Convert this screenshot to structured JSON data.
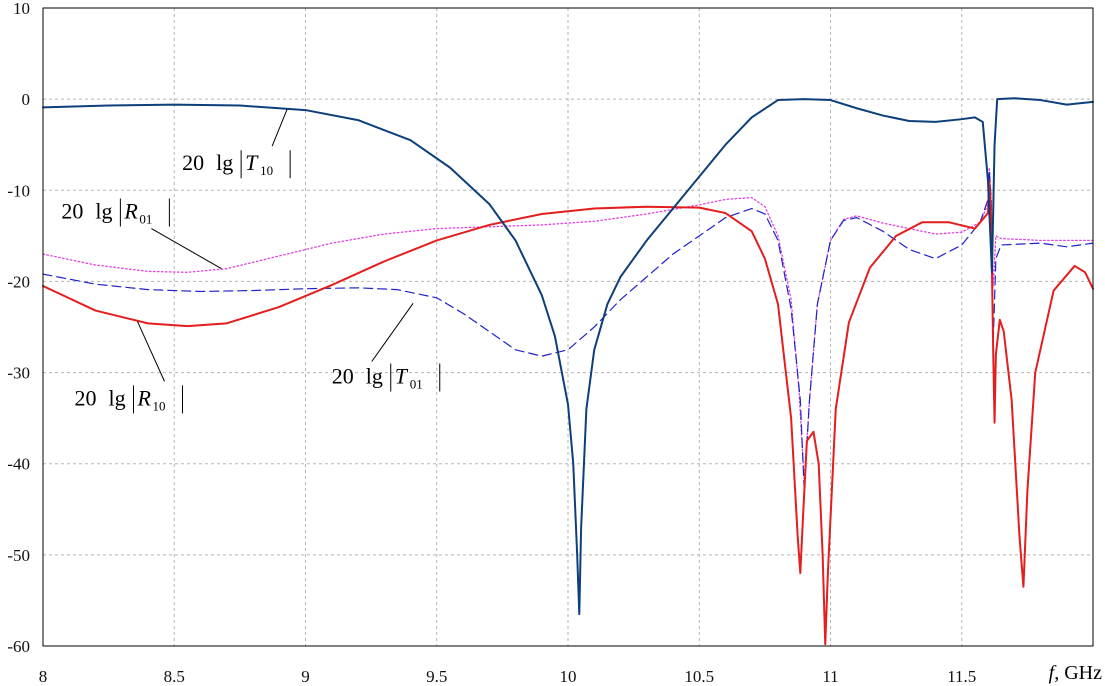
{
  "chart_data": {
    "type": "line",
    "title": "",
    "xlabel": "GHz",
    "xlabel_symbol": "f",
    "ylabel": "",
    "xlim": [
      8,
      12
    ],
    "ylim": [
      -60,
      10
    ],
    "x_ticks": [
      8,
      8.5,
      9,
      9.5,
      10,
      10.5,
      11,
      11.5
    ],
    "x_tick_labels": [
      "8",
      "8.5",
      "9",
      "9.5",
      "10",
      "10.5",
      "11",
      "11.5"
    ],
    "y_ticks": [
      10,
      0,
      -10,
      -20,
      -30,
      -40,
      -50,
      -60
    ],
    "y_tick_labels": [
      "10",
      "0",
      "-10",
      "-20",
      "-30",
      "-40",
      "-50",
      "-60"
    ],
    "grid": true,
    "series": [
      {
        "name": "20 lg|T10|",
        "color": "#0d3f7a",
        "style": "solid",
        "points": [
          [
            8.0,
            -0.9
          ],
          [
            8.25,
            -0.7
          ],
          [
            8.5,
            -0.6
          ],
          [
            8.75,
            -0.7
          ],
          [
            9.0,
            -1.2
          ],
          [
            9.2,
            -2.3
          ],
          [
            9.4,
            -4.5
          ],
          [
            9.55,
            -7.5
          ],
          [
            9.7,
            -11.5
          ],
          [
            9.8,
            -15.5
          ],
          [
            9.9,
            -21.5
          ],
          [
            9.95,
            -26.0
          ],
          [
            10.0,
            -33.5
          ],
          [
            10.02,
            -40.0
          ],
          [
            10.035,
            -50.0
          ],
          [
            10.043,
            -56.5
          ],
          [
            10.05,
            -47.0
          ],
          [
            10.07,
            -34.0
          ],
          [
            10.1,
            -27.5
          ],
          [
            10.15,
            -22.5
          ],
          [
            10.2,
            -19.5
          ],
          [
            10.3,
            -15.5
          ],
          [
            10.4,
            -12.0
          ],
          [
            10.5,
            -8.5
          ],
          [
            10.6,
            -5.0
          ],
          [
            10.7,
            -2.0
          ],
          [
            10.8,
            -0.1
          ],
          [
            10.9,
            0.0
          ],
          [
            11.0,
            -0.1
          ],
          [
            11.1,
            -1.0
          ],
          [
            11.2,
            -1.8
          ],
          [
            11.3,
            -2.4
          ],
          [
            11.4,
            -2.5
          ],
          [
            11.5,
            -2.2
          ],
          [
            11.55,
            -2.0
          ],
          [
            11.58,
            -2.5
          ],
          [
            11.6,
            -9.0
          ],
          [
            11.615,
            -19.0
          ],
          [
            11.625,
            -5.0
          ],
          [
            11.635,
            0.0
          ],
          [
            11.7,
            0.1
          ],
          [
            11.8,
            -0.1
          ],
          [
            11.9,
            -0.6
          ],
          [
            12.0,
            -0.3
          ]
        ]
      },
      {
        "name": "20 lg|R10|",
        "color": "#e41e1e",
        "style": "solid",
        "points": [
          [
            8.0,
            -20.5
          ],
          [
            8.2,
            -23.2
          ],
          [
            8.4,
            -24.6
          ],
          [
            8.55,
            -24.9
          ],
          [
            8.7,
            -24.6
          ],
          [
            8.9,
            -22.8
          ],
          [
            9.1,
            -20.4
          ],
          [
            9.3,
            -17.8
          ],
          [
            9.5,
            -15.5
          ],
          [
            9.7,
            -13.8
          ],
          [
            9.9,
            -12.6
          ],
          [
            10.1,
            -12.0
          ],
          [
            10.3,
            -11.8
          ],
          [
            10.5,
            -11.9
          ],
          [
            10.6,
            -12.5
          ],
          [
            10.7,
            -14.5
          ],
          [
            10.75,
            -17.5
          ],
          [
            10.8,
            -22.5
          ],
          [
            10.85,
            -35.0
          ],
          [
            10.875,
            -48.0
          ],
          [
            10.885,
            -52.0
          ],
          [
            10.895,
            -46.0
          ],
          [
            10.91,
            -37.5
          ],
          [
            10.935,
            -36.5
          ],
          [
            10.955,
            -40.0
          ],
          [
            10.97,
            -50.0
          ],
          [
            10.98,
            -59.8
          ],
          [
            10.99,
            -52.0
          ],
          [
            11.02,
            -34.0
          ],
          [
            11.07,
            -24.5
          ],
          [
            11.15,
            -18.5
          ],
          [
            11.25,
            -15.0
          ],
          [
            11.35,
            -13.5
          ],
          [
            11.45,
            -13.5
          ],
          [
            11.55,
            -14.2
          ],
          [
            11.6,
            -12.5
          ],
          [
            11.605,
            -9.0
          ],
          [
            11.612,
            -13.0
          ],
          [
            11.62,
            -28.0
          ],
          [
            11.625,
            -35.5
          ],
          [
            11.63,
            -28.0
          ],
          [
            11.645,
            -24.2
          ],
          [
            11.66,
            -25.5
          ],
          [
            11.69,
            -33.0
          ],
          [
            11.72,
            -48.0
          ],
          [
            11.735,
            -53.5
          ],
          [
            11.75,
            -43.0
          ],
          [
            11.78,
            -30.0
          ],
          [
            11.85,
            -21.0
          ],
          [
            11.93,
            -18.3
          ],
          [
            11.97,
            -19.0
          ],
          [
            12.0,
            -20.8
          ]
        ]
      },
      {
        "name": "20 lg|R01|",
        "color": "#e040e0",
        "style": "dotted",
        "points": [
          [
            8.0,
            -17.0
          ],
          [
            8.2,
            -18.2
          ],
          [
            8.4,
            -18.9
          ],
          [
            8.55,
            -19.0
          ],
          [
            8.7,
            -18.6
          ],
          [
            8.9,
            -17.2
          ],
          [
            9.1,
            -15.8
          ],
          [
            9.3,
            -14.8
          ],
          [
            9.5,
            -14.2
          ],
          [
            9.7,
            -14.0
          ],
          [
            9.9,
            -13.8
          ],
          [
            10.1,
            -13.4
          ],
          [
            10.3,
            -12.6
          ],
          [
            10.5,
            -11.6
          ],
          [
            10.6,
            -11.0
          ],
          [
            10.7,
            -10.8
          ],
          [
            10.75,
            -11.8
          ],
          [
            10.8,
            -15.0
          ],
          [
            10.85,
            -22.0
          ],
          [
            10.88,
            -32.0
          ],
          [
            10.9,
            -42.0
          ],
          [
            10.92,
            -33.0
          ],
          [
            10.95,
            -22.5
          ],
          [
            11.0,
            -15.5
          ],
          [
            11.05,
            -13.2
          ],
          [
            11.1,
            -12.8
          ],
          [
            11.2,
            -13.6
          ],
          [
            11.3,
            -14.2
          ],
          [
            11.4,
            -14.8
          ],
          [
            11.5,
            -14.6
          ],
          [
            11.57,
            -13.5
          ],
          [
            11.6,
            -11.5
          ],
          [
            11.605,
            -7.5
          ],
          [
            11.612,
            -11.0
          ],
          [
            11.62,
            -20.5
          ],
          [
            11.63,
            -15.0
          ],
          [
            11.65,
            -15.3
          ],
          [
            11.8,
            -15.5
          ],
          [
            12.0,
            -15.5
          ]
        ]
      },
      {
        "name": "20 lg|T01|",
        "color": "#2222cc",
        "style": "dashed",
        "points": [
          [
            8.0,
            -19.2
          ],
          [
            8.2,
            -20.3
          ],
          [
            8.4,
            -20.9
          ],
          [
            8.6,
            -21.1
          ],
          [
            8.8,
            -21.0
          ],
          [
            9.0,
            -20.8
          ],
          [
            9.2,
            -20.7
          ],
          [
            9.35,
            -20.9
          ],
          [
            9.5,
            -21.8
          ],
          [
            9.6,
            -23.5
          ],
          [
            9.7,
            -25.5
          ],
          [
            9.8,
            -27.5
          ],
          [
            9.9,
            -28.2
          ],
          [
            10.0,
            -27.5
          ],
          [
            10.1,
            -25.0
          ],
          [
            10.2,
            -22.0
          ],
          [
            10.3,
            -19.5
          ],
          [
            10.4,
            -17.0
          ],
          [
            10.5,
            -15.0
          ],
          [
            10.6,
            -13.0
          ],
          [
            10.7,
            -12.0
          ],
          [
            10.75,
            -12.6
          ],
          [
            10.8,
            -15.5
          ],
          [
            10.85,
            -23.0
          ],
          [
            10.885,
            -33.0
          ],
          [
            10.9,
            -43.0
          ],
          [
            10.92,
            -33.0
          ],
          [
            10.95,
            -22.5
          ],
          [
            11.0,
            -15.5
          ],
          [
            11.05,
            -13.3
          ],
          [
            11.1,
            -13.0
          ],
          [
            11.2,
            -14.5
          ],
          [
            11.3,
            -16.5
          ],
          [
            11.4,
            -17.5
          ],
          [
            11.5,
            -16.0
          ],
          [
            11.57,
            -13.5
          ],
          [
            11.6,
            -11.0
          ],
          [
            11.605,
            -7.8
          ],
          [
            11.612,
            -11.0
          ],
          [
            11.62,
            -26.5
          ],
          [
            11.63,
            -17.5
          ],
          [
            11.65,
            -16.0
          ],
          [
            11.8,
            -15.8
          ],
          [
            11.9,
            -16.2
          ],
          [
            12.0,
            -15.8
          ]
        ]
      }
    ],
    "annotations": [
      {
        "id": "T10",
        "prefix": "20",
        "lg": "lg",
        "letter": "T",
        "sub": "10",
        "label_x": 8.53,
        "label_y": -7.8,
        "arrow_to": [
          8.93,
          -1.1
        ]
      },
      {
        "id": "R01",
        "prefix": "20",
        "lg": "lg",
        "letter": "R",
        "sub": "01",
        "label_x": 8.07,
        "label_y": -13.1,
        "arrow_to": [
          8.68,
          -18.6
        ]
      },
      {
        "id": "R10",
        "prefix": "20",
        "lg": "lg",
        "letter": "R",
        "sub": "10",
        "label_x": 8.12,
        "label_y": -33.6,
        "arrow_to": [
          8.36,
          -24.4
        ]
      },
      {
        "id": "T01",
        "prefix": "20",
        "lg": "lg",
        "letter": "T",
        "sub": "01",
        "label_x": 9.1,
        "label_y": -31.2,
        "arrow_to": [
          9.41,
          -22.4
        ]
      }
    ]
  }
}
